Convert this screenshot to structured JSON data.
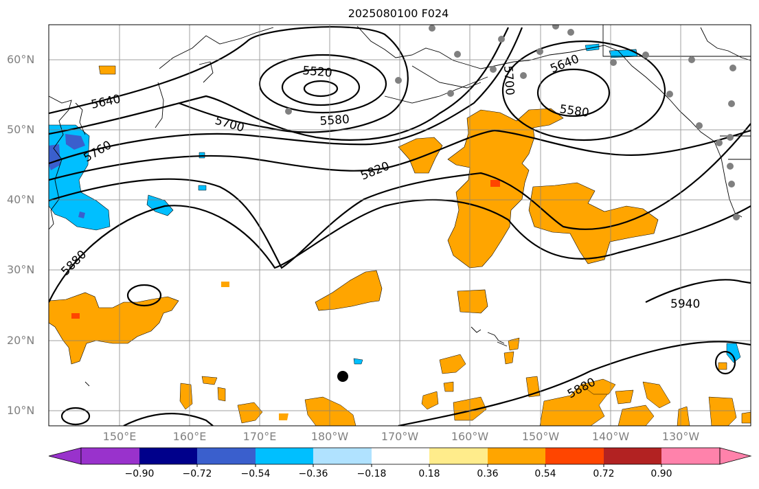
{
  "title": "2025080100 F024",
  "lat_labels": [
    "60°N",
    "50°N",
    "40°N",
    "30°N",
    "20°N",
    "10°N"
  ],
  "lon_labels": [
    "150°E",
    "160°E",
    "170°E",
    "180°W",
    "170°W",
    "160°W",
    "150°W",
    "140°W",
    "130°W"
  ],
  "contour_labels": [
    "5520",
    "5580",
    "5640",
    "5700",
    "5760",
    "5820",
    "5880",
    "5940",
    "5580",
    "5640",
    "5700",
    "5880"
  ],
  "colorbar": {
    "tick_labels": [
      "−0.90",
      "−0.72",
      "−0.54",
      "−0.36",
      "−0.18",
      "0.18",
      "0.36",
      "0.54",
      "0.72",
      "0.90"
    ],
    "colors": [
      "#9932cc",
      "#00008b",
      "#3a5fcd",
      "#00bfff",
      "#b0e2ff",
      "#ffffff",
      "#ffec8b",
      "#ffa500",
      "#ff4500",
      "#b22222",
      "#ff82ab"
    ]
  },
  "fill_colors": {
    "orange": "#ffa500",
    "light_yellow": "#ffec8b",
    "red_orange": "#ff4500",
    "cyan": "#00bfff",
    "light_blue": "#b0e2ff",
    "royal_blue": "#3a5fcd",
    "purple": "#9932cc"
  }
}
